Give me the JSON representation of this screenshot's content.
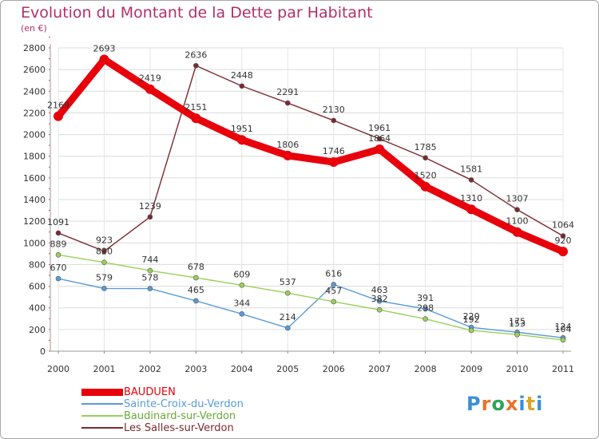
{
  "title": "Evolution du Montant de la Dette par Habitant",
  "subtitle": "(en €)",
  "logo": {
    "text": "Proxiti",
    "colors": [
      "#3a8fd8",
      "#e8722a",
      "#2aa55a",
      "#e8722a",
      "#3a8fd8",
      "#d8a62a",
      "#3a8fd8"
    ]
  },
  "chart_data": {
    "type": "line",
    "x": [
      "2000",
      "2001",
      "2002",
      "2003",
      "2004",
      "2005",
      "2006",
      "2007",
      "2008",
      "2009",
      "2010",
      "2011"
    ],
    "yticks": [
      "0",
      "200",
      "400",
      "600",
      "800",
      "1000",
      "1200",
      "1400",
      "1600",
      "1800",
      "2000",
      "2200",
      "2400",
      "2600",
      "2800"
    ],
    "ylim": [
      0,
      2800
    ],
    "grid": true,
    "legend_position": "bottom-left",
    "series": [
      {
        "name": "BAUDUEN",
        "color": "#e8000b",
        "values": [
          2169,
          2693,
          2419,
          2151,
          1951,
          1806,
          1746,
          1864,
          1520,
          1310,
          1100,
          920
        ],
        "labels": [
          "2169",
          "2693",
          "2419",
          "2151",
          "1951",
          "1806",
          "1746",
          "1864",
          "1520",
          "1310",
          "1100",
          "920"
        ]
      },
      {
        "name": "Sainte-Croix-du-Verdon",
        "color": "#5b9bd5",
        "values": [
          670,
          579,
          578,
          465,
          344,
          214,
          616,
          463,
          391,
          220,
          175,
          124
        ],
        "labels": [
          "670",
          "579",
          "578",
          "465",
          "344",
          "214",
          "616",
          "463",
          "391",
          "220",
          "175",
          "124"
        ]
      },
      {
        "name": "Baudinard-sur-Verdon",
        "color": "#9ad05a",
        "values": [
          889,
          820,
          744,
          678,
          609,
          537,
          457,
          382,
          298,
          192,
          153,
          104
        ],
        "labels": [
          "889",
          "820",
          "744",
          "678",
          "609",
          "537",
          "457",
          "382",
          "298",
          "192",
          "153",
          "104"
        ]
      },
      {
        "name": "Les Salles-sur-Verdon",
        "color": "#7b2a2f",
        "values": [
          1091,
          923,
          1239,
          2636,
          2448,
          2291,
          2130,
          1961,
          1785,
          1581,
          1307,
          1064
        ],
        "labels": [
          "1091",
          "923",
          "1239",
          "2636",
          "2448",
          "2291",
          "2130",
          "1961",
          "1785",
          "1581",
          "1307",
          "1064"
        ]
      }
    ]
  }
}
